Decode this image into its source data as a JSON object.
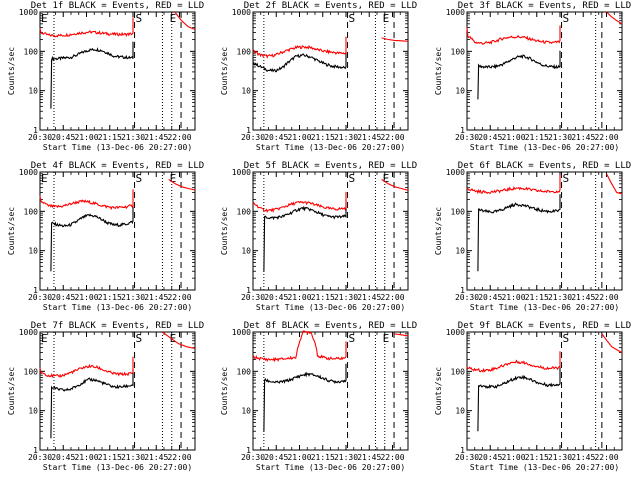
{
  "figure": {
    "ylabel": "Counts/sec",
    "xlabel": "Start Time (13-Dec-06 20:27:00)",
    "x_tick_labels": [
      "20:30",
      "20:45",
      "21:00",
      "21:15",
      "21:30",
      "21:45",
      "22:00"
    ],
    "y_tick_labels": [
      "1",
      "10",
      "100",
      "1000"
    ],
    "colors": {
      "events": "#000000",
      "lld": "#ff0000",
      "markers": "#000000",
      "background": "#ffffff"
    }
  },
  "chart_data": [
    {
      "type": "line",
      "title": "Det 1f BLACK = Events, RED = LLD",
      "xlabel": "Start Time (13-Dec-06 20:27:00)",
      "ylabel": "Counts/sec",
      "x_range": [
        "20:30",
        "22:10"
      ],
      "ylim": [
        1,
        1000
      ],
      "yscale": "log",
      "markers": [
        {
          "label": "E",
          "time": "20:30"
        },
        {
          "label": "S",
          "time": "21:31"
        },
        {
          "label": "E",
          "time": "21:53"
        }
      ],
      "dotted_lines": [
        "20:39",
        "21:49",
        "21:55"
      ],
      "dashed_lines": [
        "21:31",
        "22:01"
      ],
      "series": [
        {
          "name": "Events",
          "color": "#000000",
          "start_time": "20:37",
          "end_time": "21:30",
          "start_value": 3.5,
          "values": [
            65,
            65,
            68,
            70,
            80,
            95,
            108,
            112,
            105,
            90,
            75,
            72,
            70,
            68
          ]
        },
        {
          "name": "LLD",
          "color": "#ff0000",
          "start_time": "20:30",
          "end_time": "21:30",
          "start_value": 380,
          "values": [
            300,
            260,
            250,
            255,
            265,
            285,
            300,
            310,
            300,
            285,
            275,
            270,
            270,
            280
          ],
          "after_time": "21:57",
          "after_values": [
            1000,
            600,
            420,
            360
          ]
        }
      ]
    },
    {
      "type": "line",
      "title": "Det 2f BLACK = Events, RED = LLD",
      "xlabel": "Start Time (13-Dec-06 20:27:00)",
      "ylabel": "Counts/sec",
      "x_range": [
        "20:30",
        "22:10"
      ],
      "ylim": [
        1,
        1000
      ],
      "yscale": "log",
      "markers": [
        {
          "label": "S",
          "time": "21:31"
        },
        {
          "label": "E",
          "time": "21:53"
        }
      ],
      "dotted_lines": [
        "20:37",
        "21:49",
        "21:55"
      ],
      "dashed_lines": [
        "21:31",
        "22:01"
      ],
      "series": [
        {
          "name": "Events",
          "color": "#000000",
          "start_time": "20:30",
          "end_time": "21:30",
          "start_value": 55,
          "values": [
            50,
            40,
            33,
            32,
            38,
            55,
            75,
            80,
            72,
            58,
            48,
            42,
            40,
            38
          ]
        },
        {
          "name": "LLD",
          "color": "#ff0000",
          "start_time": "20:30",
          "end_time": "21:30",
          "start_value": 110,
          "values": [
            100,
            80,
            75,
            80,
            95,
            110,
            125,
            130,
            125,
            110,
            100,
            95,
            90,
            90
          ],
          "after_time": "21:53",
          "after_values": [
            220,
            200,
            190,
            185,
            180
          ]
        }
      ]
    },
    {
      "type": "line",
      "title": "Det 3f BLACK = Events, RED = LLD",
      "xlabel": "Start Time (13-Dec-06 20:27:00)",
      "ylabel": "Counts/sec",
      "x_range": [
        "20:30",
        "22:10"
      ],
      "ylim": [
        1,
        1000
      ],
      "yscale": "log",
      "markers": [
        {
          "label": "S",
          "time": "21:31"
        }
      ],
      "dotted_lines": [
        "21:53"
      ],
      "dashed_lines": [
        "21:31",
        "21:57"
      ],
      "series": [
        {
          "name": "Events",
          "color": "#000000",
          "start_time": "20:37",
          "end_time": "21:30",
          "start_value": 6,
          "values": [
            42,
            40,
            40,
            42,
            48,
            58,
            70,
            75,
            68,
            56,
            46,
            42,
            40,
            40
          ]
        },
        {
          "name": "LLD",
          "color": "#ff0000",
          "start_time": "20:30",
          "end_time": "21:30",
          "start_value": 400,
          "values": [
            250,
            170,
            160,
            165,
            185,
            215,
            230,
            235,
            225,
            200,
            180,
            170,
            165,
            175
          ],
          "after_time": "22:00",
          "after_values": [
            1000,
            750,
            600,
            500
          ]
        }
      ]
    },
    {
      "type": "line",
      "title": "Det 4f BLACK = Events, RED = LLD",
      "xlabel": "Start Time (13-Dec-06 20:27:00)",
      "ylabel": "Counts/sec",
      "x_range": [
        "20:30",
        "22:10"
      ],
      "ylim": [
        1,
        1000
      ],
      "yscale": "log",
      "markers": [
        {
          "label": "E",
          "time": "20:30"
        },
        {
          "label": "S",
          "time": "21:31"
        },
        {
          "label": "E",
          "time": "21:53"
        }
      ],
      "dotted_lines": [
        "20:39",
        "21:49",
        "21:55"
      ],
      "dashed_lines": [
        "21:31",
        "22:01"
      ],
      "series": [
        {
          "name": "Events",
          "color": "#000000",
          "start_time": "20:37",
          "end_time": "21:30",
          "start_value": 3,
          "values": [
            50,
            45,
            42,
            45,
            55,
            70,
            80,
            75,
            62,
            50,
            45,
            45,
            48,
            55
          ]
        },
        {
          "name": "LLD",
          "color": "#ff0000",
          "start_time": "20:30",
          "end_time": "21:30",
          "start_value": 240,
          "values": [
            180,
            140,
            130,
            135,
            150,
            170,
            180,
            170,
            150,
            135,
            125,
            125,
            130,
            140
          ],
          "after_time": "21:53",
          "after_values": [
            650,
            500,
            420,
            380,
            350
          ]
        }
      ]
    },
    {
      "type": "line",
      "title": "Det 5f BLACK = Events, RED = LLD",
      "xlabel": "Start Time (13-Dec-06 20:27:00)",
      "ylabel": "Counts/sec",
      "x_range": [
        "20:30",
        "22:10"
      ],
      "ylim": [
        1,
        1000
      ],
      "yscale": "log",
      "markers": [
        {
          "label": "S",
          "time": "21:31"
        },
        {
          "label": "E",
          "time": "21:53"
        }
      ],
      "dotted_lines": [
        "20:37",
        "21:49",
        "21:55"
      ],
      "dashed_lines": [
        "21:31",
        "22:01"
      ],
      "series": [
        {
          "name": "Events",
          "color": "#000000",
          "start_time": "20:37",
          "end_time": "21:30",
          "start_value": 3,
          "values": [
            72,
            68,
            70,
            75,
            88,
            105,
            120,
            115,
            100,
            85,
            75,
            72,
            72,
            75
          ]
        },
        {
          "name": "LLD",
          "color": "#ff0000",
          "start_time": "20:30",
          "end_time": "21:30",
          "start_value": 170,
          "values": [
            160,
            115,
            105,
            110,
            125,
            145,
            165,
            170,
            160,
            140,
            125,
            115,
            115,
            120
          ],
          "after_time": "21:53",
          "after_values": [
            650,
            500,
            420,
            380,
            340
          ]
        }
      ]
    },
    {
      "type": "line",
      "title": "Det 6f BLACK = Events, RED = LLD",
      "xlabel": "Start Time (13-Dec-06 20:27:00)",
      "ylabel": "Counts/sec",
      "x_range": [
        "20:30",
        "22:10"
      ],
      "ylim": [
        1,
        1000
      ],
      "yscale": "log",
      "markers": [
        {
          "label": "S",
          "time": "21:31"
        }
      ],
      "dotted_lines": [
        "21:53"
      ],
      "dashed_lines": [
        "21:31",
        "21:57"
      ],
      "series": [
        {
          "name": "Events",
          "color": "#000000",
          "start_time": "20:37",
          "end_time": "21:30",
          "start_value": 3,
          "values": [
            110,
            100,
            95,
            100,
            115,
            135,
            150,
            145,
            130,
            115,
            105,
            100,
            100,
            105
          ]
        },
        {
          "name": "LLD",
          "color": "#ff0000",
          "start_time": "20:30",
          "end_time": "21:30",
          "start_value": 400,
          "values": [
            380,
            330,
            310,
            310,
            320,
            340,
            370,
            390,
            380,
            350,
            330,
            320,
            320,
            330
          ],
          "after_time": "22:00",
          "after_values": [
            900,
            500,
            300,
            280
          ]
        }
      ]
    },
    {
      "type": "line",
      "title": "Det 7f BLACK = Events, RED = LLD",
      "xlabel": "Start Time (13-Dec-06 20:27:00)",
      "ylabel": "Counts/sec",
      "x_range": [
        "20:30",
        "22:10"
      ],
      "ylim": [
        1,
        1000
      ],
      "yscale": "log",
      "markers": [
        {
          "label": "E",
          "time": "20:30"
        },
        {
          "label": "S",
          "time": "21:31"
        },
        {
          "label": "E",
          "time": "21:53"
        }
      ],
      "dotted_lines": [
        "20:39",
        "21:49",
        "21:55"
      ],
      "dashed_lines": [
        "21:31",
        "22:01"
      ],
      "series": [
        {
          "name": "Events",
          "color": "#000000",
          "start_time": "20:37",
          "end_time": "21:30",
          "start_value": 2,
          "values": [
            40,
            35,
            33,
            35,
            42,
            52,
            62,
            60,
            52,
            45,
            40,
            40,
            42,
            45
          ]
        },
        {
          "name": "LLD",
          "color": "#ff0000",
          "start_time": "20:30",
          "end_time": "21:30",
          "start_value": 120,
          "values": [
            95,
            80,
            75,
            78,
            90,
            105,
            125,
            135,
            125,
            105,
            90,
            85,
            85,
            90
          ],
          "after_time": "21:49",
          "after_values": [
            1000,
            700,
            500,
            420,
            380
          ]
        }
      ]
    },
    {
      "type": "line",
      "title": "Det 8f BLACK = Events, RED = LLD",
      "xlabel": "Start Time (13-Dec-06 20:27:00)",
      "ylabel": "Counts/sec",
      "x_range": [
        "20:30",
        "22:10"
      ],
      "ylim": [
        1,
        1000
      ],
      "yscale": "log",
      "markers": [
        {
          "label": "S",
          "time": "21:31"
        },
        {
          "label": "E",
          "time": "21:53"
        }
      ],
      "dotted_lines": [
        "20:37",
        "21:49",
        "21:55"
      ],
      "dashed_lines": [
        "21:31",
        "22:01"
      ],
      "series": [
        {
          "name": "Events",
          "color": "#000000",
          "start_time": "20:37",
          "end_time": "21:30",
          "start_value": 3,
          "values": [
            60,
            55,
            52,
            55,
            60,
            70,
            80,
            85,
            80,
            70,
            60,
            55,
            55,
            60
          ]
        },
        {
          "name": "LLD",
          "color": "#ff0000",
          "start_time": "20:30",
          "end_time": "21:30",
          "start_value": 250,
          "values": [
            230,
            210,
            200,
            200,
            205,
            215,
            230,
            1000,
            1000,
            250,
            220,
            210,
            210,
            220
          ],
          "after_time": "22:01",
          "after_values": [
            900,
            800
          ]
        }
      ]
    },
    {
      "type": "line",
      "title": "Det 9f BLACK = Events, RED = LLD",
      "xlabel": "Start Time (13-Dec-06 20:27:00)",
      "ylabel": "Counts/sec",
      "x_range": [
        "20:30",
        "22:10"
      ],
      "ylim": [
        1,
        1000
      ],
      "yscale": "log",
      "markers": [
        {
          "label": "S",
          "time": "21:31"
        }
      ],
      "dotted_lines": [
        "21:53"
      ],
      "dashed_lines": [
        "21:31",
        "21:57"
      ],
      "series": [
        {
          "name": "Events",
          "color": "#000000",
          "start_time": "20:37",
          "end_time": "21:30",
          "start_value": 3,
          "values": [
            45,
            42,
            40,
            42,
            48,
            58,
            68,
            72,
            65,
            55,
            48,
            45,
            45,
            48
          ]
        },
        {
          "name": "LLD",
          "color": "#ff0000",
          "start_time": "20:30",
          "end_time": "21:30",
          "start_value": 130,
          "values": [
            120,
            110,
            105,
            108,
            120,
            140,
            165,
            175,
            165,
            145,
            130,
            120,
            120,
            125
          ],
          "after_time": "21:57",
          "after_values": [
            900,
            600,
            420,
            350,
            300
          ]
        }
      ]
    }
  ]
}
